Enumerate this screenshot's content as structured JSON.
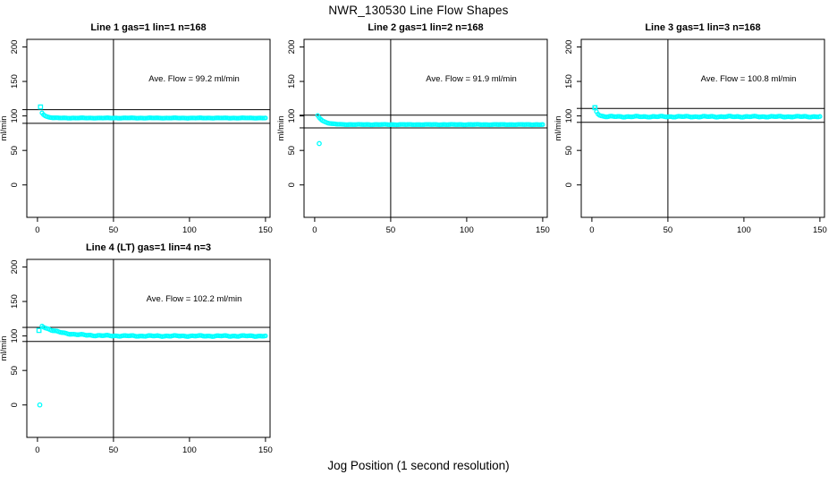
{
  "page": {
    "title": "NWR_130530  Line Flow Shapes",
    "xlabel": "Jog Position (1 second resolution)"
  },
  "chart_data": {
    "type": "scatter",
    "title": "NWR_130530  Line Flow Shapes",
    "xlabel": "Jog Position (1 second resolution)",
    "ylabel": "ml/min",
    "marker_color": "#00FFFF",
    "axis_color": "#000000",
    "x_ticks": [
      0,
      50,
      100,
      150
    ],
    "y_ticks": [
      0,
      50,
      100,
      150,
      200
    ],
    "xlim": [
      -7,
      153
    ],
    "ylim": [
      -47,
      211
    ],
    "legend": "none",
    "grid": false,
    "panels": [
      {
        "title": "Line 1 gas=1 lin=1 n=168",
        "annotation": "Ave. Flow =  99.2  ml/min",
        "ave_flow_ml_min": 99.2,
        "n": 168,
        "vline_x": 50,
        "hlines": [
          109.1,
          89.3
        ],
        "series": {
          "x_start": 3,
          "x_end": 150,
          "start_value": 104.5,
          "flat_value": 97,
          "tau": 2.5,
          "jitter": 0.3
        },
        "extra_points": [
          {
            "x": 2,
            "y": 113,
            "marker": "square"
          }
        ]
      },
      {
        "title": "Line 2 gas=1 lin=2 n=168",
        "annotation": "Ave. Flow =  91.9  ml/min",
        "ave_flow_ml_min": 91.9,
        "n": 168,
        "vline_x": 50,
        "hlines": [
          101.1,
          82.7
        ],
        "series": {
          "x_start": 2,
          "x_end": 150,
          "start_value": 100.5,
          "flat_value": 87.5,
          "tau": 4,
          "jitter": 0.3
        },
        "extra_points": [
          {
            "x": 3,
            "y": 60,
            "marker": "circle"
          }
        ]
      },
      {
        "title": "Line 3 gas=1 lin=3 n=168",
        "annotation": "Ave. Flow =  100.8  ml/min",
        "ave_flow_ml_min": 100.8,
        "n": 168,
        "vline_x": 50,
        "hlines": [
          110.9,
          90.7
        ],
        "series": {
          "x_start": 2,
          "x_end": 150,
          "start_value": 112,
          "flat_value": 99,
          "tau": 1.8,
          "jitter": 0.8
        },
        "extra_points": [
          {
            "x": 2,
            "y": 112,
            "marker": "square"
          }
        ]
      },
      {
        "title": "Line 4 (LT) gas=1 lin=4 n=3",
        "annotation": "Ave. Flow =  102.2  ml/min",
        "ave_flow_ml_min": 102.2,
        "n": 3,
        "vline_x": 50,
        "hlines": [
          112.4,
          92.0
        ],
        "series": {
          "x_start": 3,
          "x_end": 150,
          "start_value": 114.5,
          "flat_value": 100,
          "tau": 12,
          "jitter": 0.8
        },
        "extra_points": [
          {
            "x": 1,
            "y": 108,
            "marker": "square"
          },
          {
            "x": 1.5,
            "y": 0,
            "marker": "circle"
          }
        ]
      }
    ]
  }
}
